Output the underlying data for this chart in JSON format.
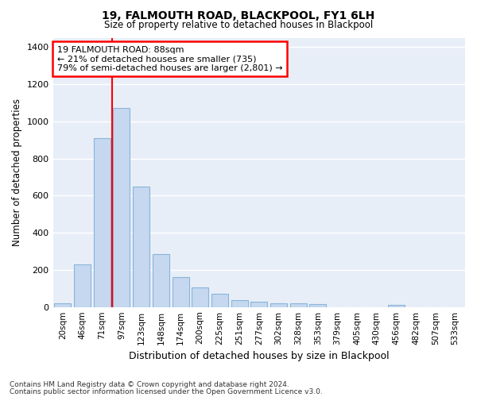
{
  "title": "19, FALMOUTH ROAD, BLACKPOOL, FY1 6LH",
  "subtitle": "Size of property relative to detached houses in Blackpool",
  "xlabel": "Distribution of detached houses by size in Blackpool",
  "ylabel": "Number of detached properties",
  "bar_color": "#c5d8f0",
  "bar_edge_color": "#8ab4d8",
  "background_color": "#e8eef8",
  "grid_color": "#ffffff",
  "categories": [
    "20sqm",
    "46sqm",
    "71sqm",
    "97sqm",
    "123sqm",
    "148sqm",
    "174sqm",
    "200sqm",
    "225sqm",
    "251sqm",
    "277sqm",
    "302sqm",
    "328sqm",
    "353sqm",
    "379sqm",
    "405sqm",
    "430sqm",
    "456sqm",
    "482sqm",
    "507sqm",
    "533sqm"
  ],
  "values": [
    18,
    228,
    910,
    1070,
    650,
    285,
    160,
    107,
    70,
    38,
    27,
    20,
    20,
    15,
    0,
    0,
    0,
    12,
    0,
    0,
    0
  ],
  "ylim": [
    0,
    1450
  ],
  "yticks": [
    0,
    200,
    400,
    600,
    800,
    1000,
    1200,
    1400
  ],
  "annotation_line1": "19 FALMOUTH ROAD: 88sqm",
  "annotation_line2": "← 21% of detached houses are smaller (735)",
  "annotation_line3": "79% of semi-detached houses are larger (2,801) →",
  "red_line_x": 2.5,
  "footnote1": "Contains HM Land Registry data © Crown copyright and database right 2024.",
  "footnote2": "Contains public sector information licensed under the Open Government Licence v3.0."
}
